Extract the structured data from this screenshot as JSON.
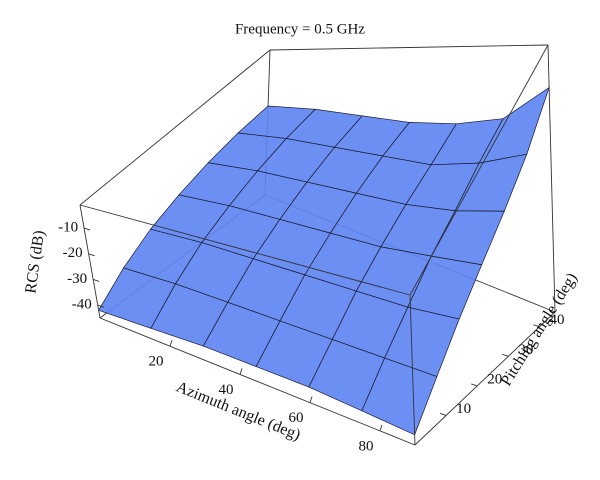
{
  "chart_data": {
    "type": "surface3d",
    "title": "Frequency = 0.5 GHz",
    "xlabel": "Azimuth angle (deg)",
    "ylabel": "Pitching angle (deg)",
    "zlabel": "RCS (dB)",
    "x": [
      0,
      15,
      30,
      45,
      60,
      75,
      90
    ],
    "y": [
      0,
      7.5,
      15,
      22.5,
      30,
      37.5,
      45
    ],
    "z": [
      [
        -42,
        -41,
        -40,
        -40,
        -40,
        -41,
        -42
      ],
      [
        -34,
        -33,
        -33,
        -33,
        -33,
        -33,
        -33
      ],
      [
        -28,
        -27,
        -27,
        -27,
        -27,
        -27,
        -26
      ],
      [
        -24,
        -23,
        -23,
        -23,
        -23,
        -22,
        -21
      ],
      [
        -21,
        -20,
        -20,
        -20,
        -20,
        -19,
        -17
      ],
      [
        -19,
        -18,
        -18,
        -18,
        -18,
        -16,
        -13
      ],
      [
        -18,
        -17,
        -17,
        -17,
        -16,
        -14,
        -8
      ]
    ],
    "color": "#5f86f2",
    "xlim": [
      0,
      90
    ],
    "ylim": [
      0,
      45
    ],
    "zlim": [
      -45,
      -1
    ],
    "xticks": [
      20,
      40,
      60,
      80
    ],
    "yticks": [
      10,
      20,
      30,
      40
    ],
    "zticks": [
      -40,
      -30,
      -20,
      -10
    ]
  }
}
